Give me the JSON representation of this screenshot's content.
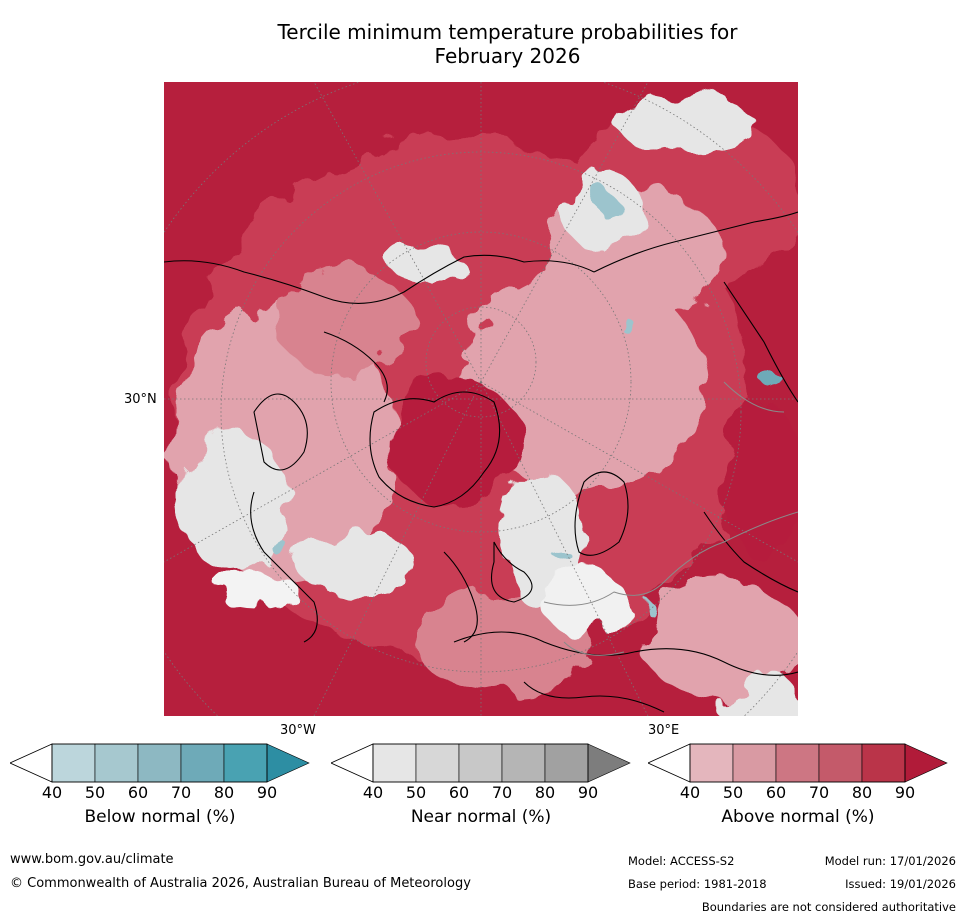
{
  "title_line1": "Tercile minimum temperature probabilities for",
  "title_line2": "February 2026",
  "map": {
    "lat_label": "30°N",
    "lon_label_west": "30°W",
    "lon_label_east": "30°E",
    "colors": {
      "above_fill": "#c93e55",
      "above_strong": "#b61f3d",
      "above_light": "#e1a3ad",
      "near_fill": "#e6e6e6",
      "below_fill": "#9cc4cd",
      "coast": "#000000",
      "border": "#808080"
    }
  },
  "colorbars": [
    {
      "label": "Below normal (%)",
      "ticks": [
        "40",
        "50",
        "60",
        "70",
        "80",
        "90"
      ],
      "colors": [
        "#bcd6dc",
        "#a6c8cf",
        "#8db8c2",
        "#6eaab8",
        "#49a2b2",
        "#2d8ea3"
      ]
    },
    {
      "label": "Near normal (%)",
      "ticks": [
        "40",
        "50",
        "60",
        "70",
        "80",
        "90"
      ],
      "colors": [
        "#e6e6e6",
        "#d7d7d7",
        "#c8c8c8",
        "#b5b5b5",
        "#a1a1a1",
        "#7d7d7d"
      ]
    },
    {
      "label": "Above normal (%)",
      "ticks": [
        "40",
        "50",
        "60",
        "70",
        "80",
        "90"
      ],
      "colors": [
        "#e4b6bd",
        "#d99aa3",
        "#cd7683",
        "#c45a6a",
        "#ba3449",
        "#b11b39"
      ]
    }
  ],
  "footer": {
    "url": "www.bom.gov.au/climate",
    "copyright": "© Commonwealth of Australia 2026, Australian Bureau of Meteorology",
    "model": "Model: ACCESS-S2",
    "model_run": "Model run: 17/01/2026",
    "base_period": "Base period: 1981-2018",
    "issued": "Issued: 19/01/2026",
    "disclaimer": "Boundaries are not considered authoritative"
  }
}
